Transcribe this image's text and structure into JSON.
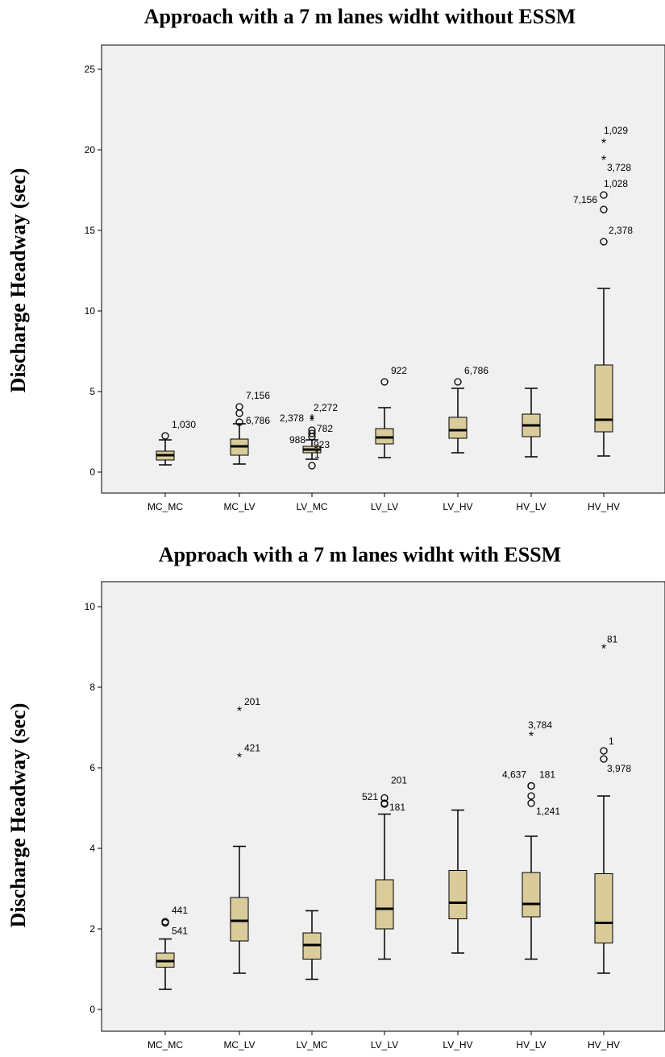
{
  "chart_data": [
    {
      "type": "boxplot",
      "title": "Approach with a 7 m lanes widht without ESSM",
      "ylabel": "Discharge Headway (sec)",
      "xlabel": "",
      "ylim": [
        0,
        26
      ],
      "yticks": [
        "0",
        "5",
        "10",
        "15",
        "20",
        "25"
      ],
      "categories": [
        "MC_MC",
        "MC_LV",
        "LV_MC",
        "LV_LV",
        "LV_HV",
        "HV_LV",
        "HV_HV"
      ],
      "boxes": [
        {
          "min": 0.45,
          "q1": 0.75,
          "median": 1.05,
          "q3": 1.3,
          "max": 2.0
        },
        {
          "min": 0.5,
          "q1": 1.05,
          "median": 1.6,
          "q3": 2.05,
          "max": 3.0
        },
        {
          "min": 0.8,
          "q1": 1.2,
          "median": 1.4,
          "q3": 1.6,
          "max": 2.0
        },
        {
          "min": 0.9,
          "q1": 1.75,
          "median": 2.15,
          "q3": 2.7,
          "max": 4.0
        },
        {
          "min": 1.2,
          "q1": 2.1,
          "median": 2.6,
          "q3": 3.4,
          "max": 5.2
        },
        {
          "min": 0.95,
          "q1": 2.2,
          "median": 2.9,
          "q3": 3.6,
          "max": 5.2
        },
        {
          "min": 1.0,
          "q1": 2.5,
          "median": 3.25,
          "q3": 6.65,
          "max": 11.4
        }
      ],
      "outliers": [
        {
          "cat": 0,
          "y": 2.25,
          "shape": "circle",
          "label": "1,030",
          "dx": 8,
          "dy": -10
        },
        {
          "cat": 1,
          "y": 4.05,
          "shape": "circle",
          "label": "7,156",
          "dx": 8,
          "dy": -10
        },
        {
          "cat": 1,
          "y": 3.65,
          "shape": "circle",
          "label": "",
          "dx": 0,
          "dy": 0
        },
        {
          "cat": 1,
          "y": 3.1,
          "shape": "circle",
          "label": "6,786",
          "dx": 8,
          "dy": 2
        },
        {
          "cat": 2,
          "y": 3.3,
          "shape": "star",
          "label": "2,272",
          "dx": 2,
          "dy": -10
        },
        {
          "cat": 2,
          "y": 3.15,
          "shape": "star",
          "label": "2,378",
          "dx": -40,
          "dy": 0
        },
        {
          "cat": 2,
          "y": 2.6,
          "shape": "circle",
          "label": "782",
          "dx": 6,
          "dy": 2
        },
        {
          "cat": 2,
          "y": 2.4,
          "shape": "circle",
          "label": "",
          "dx": 0,
          "dy": 0
        },
        {
          "cat": 2,
          "y": 2.2,
          "shape": "circle",
          "label": "",
          "dx": 0,
          "dy": 0
        },
        {
          "cat": 2,
          "y": 0.4,
          "shape": "circle",
          "label": "",
          "dx": 0,
          "dy": 0
        }
      ],
      "labels": [
        {
          "cat": 2,
          "y": 1.9,
          "text": "988",
          "dx": -28,
          "dy": 2
        },
        {
          "cat": 2,
          "y": 1.5,
          "text": "923",
          "dx": 2,
          "dy": 0
        },
        {
          "cat": 2,
          "y": 0.9,
          "text": "1",
          "dx": 3,
          "dy": 0
        },
        {
          "cat": 3,
          "y": 5.6,
          "shape": "circle",
          "text": "922",
          "dx": 8,
          "dy": -10
        },
        {
          "cat": 4,
          "y": 5.6,
          "shape": "circle",
          "text": "6,786",
          "dx": 8,
          "dy": -10
        },
        {
          "cat": 6,
          "y": 20.4,
          "shape": "star",
          "text": "1,029",
          "dx": 0,
          "dy": -12
        },
        {
          "cat": 6,
          "y": 19.35,
          "shape": "star",
          "text": "3,728",
          "dx": 4,
          "dy": 13
        },
        {
          "cat": 6,
          "y": 17.2,
          "shape": "circle",
          "text": "1,028",
          "dx": 0,
          "dy": -10
        },
        {
          "cat": 6,
          "y": 16.3,
          "shape": "circle",
          "text": "7,156",
          "dx": -38,
          "dy": -8
        },
        {
          "cat": 6,
          "y": 14.3,
          "shape": "circle",
          "text": "2,378",
          "dx": 6,
          "dy": -10
        }
      ]
    },
    {
      "type": "boxplot",
      "title": "Approach with a 7 m lanes widht with ESSM",
      "ylabel": "Discharge Headway (sec)",
      "xlabel": "",
      "ylim": [
        -0.4,
        10.4
      ],
      "yticks": [
        "0",
        "2",
        "4",
        "6",
        "8",
        "10"
      ],
      "categories": [
        "MC_MC",
        "MC_LV",
        "LV_MC",
        "LV_LV",
        "LV_HV",
        "HV_LV",
        "HV_HV"
      ],
      "boxes": [
        {
          "min": 0.5,
          "q1": 1.05,
          "median": 1.2,
          "q3": 1.4,
          "max": 1.75
        },
        {
          "min": 0.9,
          "q1": 1.7,
          "median": 2.2,
          "q3": 2.78,
          "max": 4.05
        },
        {
          "min": 0.75,
          "q1": 1.25,
          "median": 1.6,
          "q3": 1.9,
          "max": 2.45
        },
        {
          "min": 1.25,
          "q1": 2.0,
          "median": 2.5,
          "q3": 3.22,
          "max": 4.85
        },
        {
          "min": 1.4,
          "q1": 2.25,
          "median": 2.65,
          "q3": 3.45,
          "max": 4.95
        },
        {
          "min": 1.25,
          "q1": 2.3,
          "median": 2.62,
          "q3": 3.4,
          "max": 4.3
        },
        {
          "min": 0.9,
          "q1": 1.65,
          "median": 2.15,
          "q3": 3.37,
          "max": 5.3
        }
      ],
      "outliers": [
        {
          "cat": 0,
          "y": 2.18,
          "shape": "circle",
          "label": "441",
          "dx": 8,
          "dy": -10
        },
        {
          "cat": 0,
          "y": 2.15,
          "shape": "circle",
          "label": "541",
          "dx": 8,
          "dy": 14
        },
        {
          "cat": 1,
          "y": 7.4,
          "shape": "star",
          "label": "201",
          "dx": 6,
          "dy": -8
        },
        {
          "cat": 1,
          "y": 6.25,
          "shape": "star",
          "label": "421",
          "dx": 6,
          "dy": -8
        },
        {
          "cat": 3,
          "y": 5.25,
          "shape": "circle",
          "label": "201",
          "dx": 8,
          "dy": -18
        },
        {
          "cat": 3,
          "y": 5.12,
          "shape": "circle",
          "label": "521",
          "dx": -28,
          "dy": -4
        },
        {
          "cat": 3,
          "y": 5.1,
          "shape": "circle",
          "label": "181",
          "dx": 6,
          "dy": 8
        },
        {
          "cat": 5,
          "y": 6.78,
          "shape": "star",
          "label": "3,784",
          "dx": -4,
          "dy": -10
        },
        {
          "cat": 5,
          "y": 5.55,
          "shape": "circle",
          "label": "181",
          "dx": 10,
          "dy": -10
        },
        {
          "cat": 5,
          "y": 5.55,
          "shape": "circle",
          "label": "4,637",
          "dx": -36,
          "dy": -10
        },
        {
          "cat": 5,
          "y": 5.3,
          "shape": "circle",
          "label": "",
          "dx": 0,
          "dy": 0
        },
        {
          "cat": 5,
          "y": 5.12,
          "shape": "circle",
          "label": "1,241",
          "dx": 6,
          "dy": 14
        },
        {
          "cat": 6,
          "y": 8.95,
          "shape": "star",
          "label": "81",
          "dx": 4,
          "dy": -8
        },
        {
          "cat": 6,
          "y": 6.42,
          "shape": "circle",
          "label": "1",
          "dx": 6,
          "dy": -8
        },
        {
          "cat": 6,
          "y": 6.22,
          "shape": "circle",
          "label": "3,978",
          "dx": 4,
          "dy": 16
        }
      ],
      "labels": []
    }
  ],
  "style": {
    "box_fill": "#d9cc9a",
    "plot_bg": "#f0f0f0",
    "line": "#000000"
  }
}
